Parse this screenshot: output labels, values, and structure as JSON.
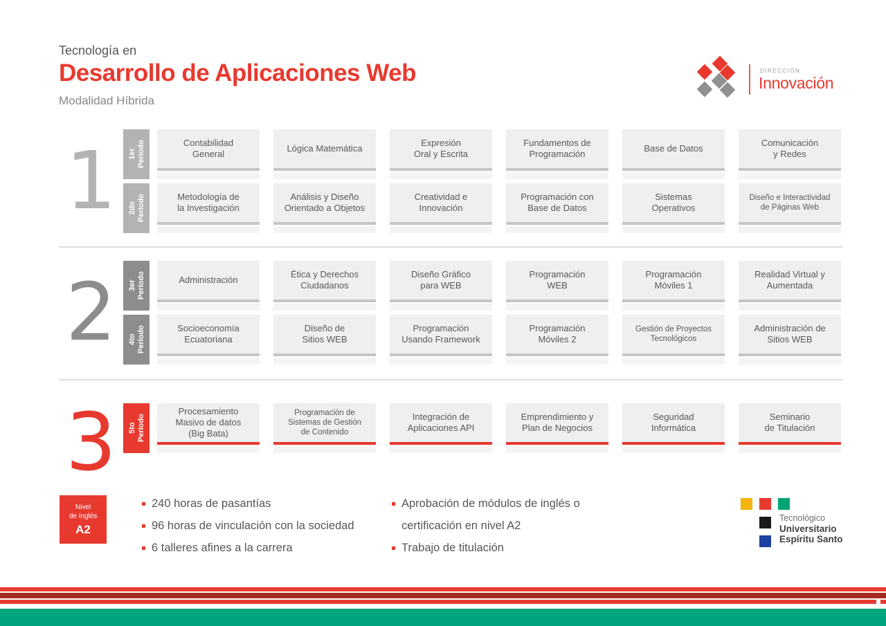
{
  "header": {
    "kicker": "Tecnología en",
    "title": "Desarrollo de Aplicaciones Web",
    "subtitle": "Modalidad Híbrida",
    "direccion_label": "DIRECCIÓN",
    "direccion_name": "Innovación"
  },
  "sections": [
    {
      "number": "1",
      "accent": "#b3b3b4",
      "bar_color": "#c5c5c6",
      "rows": [
        {
          "period": {
            "line1": "1er",
            "line2": "Período"
          },
          "courses": [
            "Contabilidad\nGeneral",
            "Lógica Matemática",
            "Expresión\nOral y Escrita",
            "Fundamentos de\nProgramación",
            "Base de Datos",
            "Comunicación\ny Redes"
          ]
        },
        {
          "period": {
            "line1": "2do",
            "line2": "Período"
          },
          "courses": [
            "Metodología de\nla Investigación",
            "Análisis y Diseño\nOrientado a Objetos",
            "Creatividad e\nInnovación",
            "Programación con\nBase de Datos",
            "Sistemas\nOperativos",
            "Diseño e Interactividad\nde Páginas Web"
          ]
        }
      ]
    },
    {
      "number": "2",
      "accent": "#8d8d8f",
      "bar_color": "#c5c5c6",
      "rows": [
        {
          "period": {
            "line1": "3er",
            "line2": "Período"
          },
          "courses": [
            "Administración",
            "Ética y Derechos\nCiudadanos",
            "Diseño Gráfico\npara WEB",
            "Programación\nWEB",
            "Programación\nMóviles 1",
            "Realidad Virtual y\nAumentada"
          ]
        },
        {
          "period": {
            "line1": "4to",
            "line2": "Período"
          },
          "courses": [
            "Socioeconomía\nEcuatoriana",
            "Diseño de\nSitios WEB",
            "Programación\nUsando Framework",
            "Programación\nMóviles 2",
            "Gestión de Proyectos\nTecnológicos",
            "Administración de\nSitios WEB"
          ]
        }
      ]
    },
    {
      "number": "3",
      "accent": "#e8392f",
      "bar_color": "#e8392f",
      "rows": [
        {
          "period": {
            "line1": "5to",
            "line2": "Período"
          },
          "courses": [
            "Procesamiento\nMasivo de datos\n(Big Bata)",
            "Programación de\nSistemas de Gestión\nde Contenido",
            "Integración de\nAplicaciones API",
            "Emprendimiento y\nPlan de Negocios",
            "Seguridad\nInformática",
            "Seminario\nde Titulación"
          ]
        }
      ]
    }
  ],
  "footer": {
    "english_level": {
      "line1": "Nivel",
      "line2": "de Inglés",
      "level": "A2"
    },
    "requirements_left": [
      "240 horas de pasantías",
      "96 horas de vinculación con la sociedad",
      "6 talleres afines a la carrera"
    ],
    "requirements_right": [
      "Aprobación de módulos de inglés o certificación en nivel A2",
      "Trabajo de titulación"
    ],
    "university": {
      "line1": "Tecnológico",
      "line2": "Universitario",
      "line3": "Espíritu Santo"
    }
  },
  "colors": {
    "red": "#e8392f",
    "dark_red": "#a52a20",
    "green": "#00a57e",
    "diamond_gray": "#909093",
    "logo_yellow": "#f6b40e",
    "logo_red": "#e8392f",
    "logo_green": "#00a376",
    "logo_black": "#1a1a1a",
    "logo_blue": "#1c41a0"
  }
}
